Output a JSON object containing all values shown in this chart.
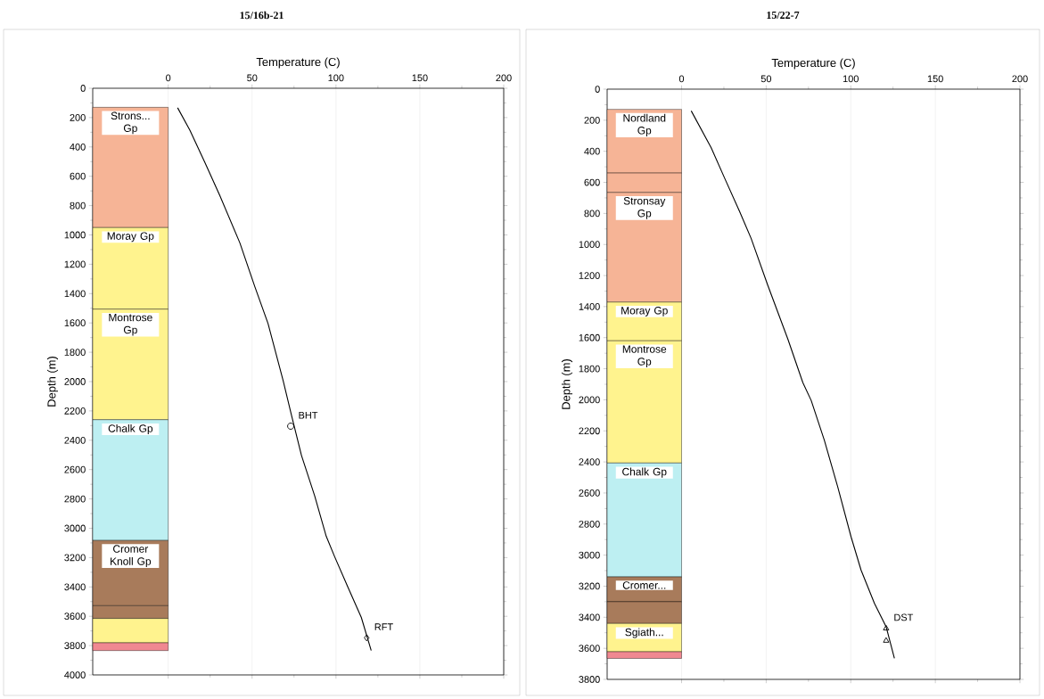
{
  "chart_data": [
    {
      "type": "line",
      "title": "15/16b-21",
      "xlabel": "Temperature (C)",
      "ylabel": "Depth (m)",
      "xlim": [
        -45,
        200
      ],
      "ylim": [
        4000,
        0
      ],
      "xticks": [
        0,
        50,
        100,
        150,
        200
      ],
      "yticks": [
        0,
        200,
        400,
        600,
        800,
        1000,
        1200,
        1400,
        1600,
        1800,
        2000,
        2200,
        2400,
        2600,
        2800,
        3000,
        3200,
        3400,
        3600,
        3800,
        4000
      ],
      "grid": "x",
      "series": [
        {
          "color": "#000000",
          "x": [
            5.6,
            12.9,
            21.8,
            30.8,
            42.7,
            51.6,
            59.5,
            68.5,
            73.4,
            79.4,
            87.3,
            94.2,
            99.2,
            107.1,
            115.1,
            121
          ],
          "values": [
            133,
            286,
            504,
            733,
            1054,
            1352,
            1604,
            1993,
            2226,
            2502,
            2779,
            3055,
            3194,
            3401,
            3608,
            3834
          ]
        },
        {
          "type": "scatter",
          "name": "BHT",
          "marker": "circle",
          "color": "#000000",
          "x": [
            73
          ],
          "values": [
            2304
          ]
        },
        {
          "type": "scatter",
          "name": "RFT",
          "marker": "diamond",
          "color": "#000000",
          "x": [
            118.3
          ],
          "values": [
            3747
          ]
        }
      ],
      "bands": [
        {
          "axis": "y",
          "from": 130,
          "to": 950,
          "label": "Strons... Gp",
          "color": "#f6b496"
        },
        {
          "axis": "y",
          "from": 950,
          "to": 1506,
          "label": "Moray Gp",
          "color": "#fff38e"
        },
        {
          "axis": "y",
          "from": 1506,
          "to": 2260,
          "label": "Montrose Gp",
          "color": "#fff38e"
        },
        {
          "axis": "y",
          "from": 2260,
          "to": 3083,
          "label": "Chalk Gp",
          "color": "#bdeff2"
        },
        {
          "axis": "y",
          "from": 3083,
          "to": 3528,
          "label": "Cromer Knoll Gp",
          "color": "#a87b5b"
        },
        {
          "axis": "y",
          "from": 3528,
          "to": 3615,
          "color": "#a87b5b"
        },
        {
          "axis": "y",
          "from": 3615,
          "to": 3781,
          "color": "#fff38e"
        },
        {
          "axis": "y",
          "from": 3781,
          "to": 3834,
          "color": "#f08891"
        }
      ]
    },
    {
      "type": "line",
      "title": "15/22-7",
      "xlabel": "Temperature (C)",
      "ylabel": "Depth (m)",
      "xlim": [
        -44,
        200
      ],
      "ylim": [
        3800,
        0
      ],
      "xticks": [
        0,
        50,
        100,
        150,
        200
      ],
      "yticks": [
        0,
        200,
        400,
        600,
        800,
        1000,
        1200,
        1400,
        1600,
        1800,
        2000,
        2200,
        2400,
        2600,
        2800,
        3000,
        3200,
        3400,
        3600,
        3800
      ],
      "grid": "x",
      "series": [
        {
          "color": "#000000",
          "x": [
            5.7,
            17.5,
            25.4,
            34.3,
            41.1,
            51,
            62.8,
            71.7,
            76.6,
            84.4,
            92.3,
            100.2,
            106.1,
            114,
            120.9,
            125.8
          ],
          "values": [
            140,
            378,
            572,
            788,
            961,
            1264,
            1609,
            1890,
            2004,
            2261,
            2561,
            2883,
            3097,
            3311,
            3461,
            3665
          ]
        },
        {
          "type": "scatter",
          "name": "DST",
          "marker": "triangle",
          "color": "#000000",
          "x": [
            120.9,
            120.9
          ],
          "values": [
            3472,
            3551
          ]
        }
      ],
      "bands": [
        {
          "axis": "y",
          "from": 130,
          "to": 540,
          "label": "Nordland Gp",
          "color": "#f6b496"
        },
        {
          "axis": "y",
          "from": 540,
          "to": 665,
          "color": "#f6b496"
        },
        {
          "axis": "y",
          "from": 665,
          "to": 1371,
          "label": "Stronsay Gp",
          "color": "#f6b496"
        },
        {
          "axis": "y",
          "from": 1371,
          "to": 1620,
          "label": "Moray Gp",
          "color": "#fff38e"
        },
        {
          "axis": "y",
          "from": 1620,
          "to": 2407,
          "label": "Montrose Gp",
          "color": "#fff38e"
        },
        {
          "axis": "y",
          "from": 2407,
          "to": 3140,
          "label": "Chalk Gp",
          "color": "#bdeff2"
        },
        {
          "axis": "y",
          "from": 3140,
          "to": 3300,
          "label": "Cromer...",
          "color": "#a87b5b"
        },
        {
          "axis": "y",
          "from": 3300,
          "to": 3440,
          "color": "#a87b5b"
        },
        {
          "axis": "y",
          "from": 3440,
          "to": 3622,
          "label": "Sgiath...",
          "color": "#fff38e"
        },
        {
          "axis": "y",
          "from": 3622,
          "to": 3665,
          "color": "#f08891"
        }
      ]
    }
  ]
}
